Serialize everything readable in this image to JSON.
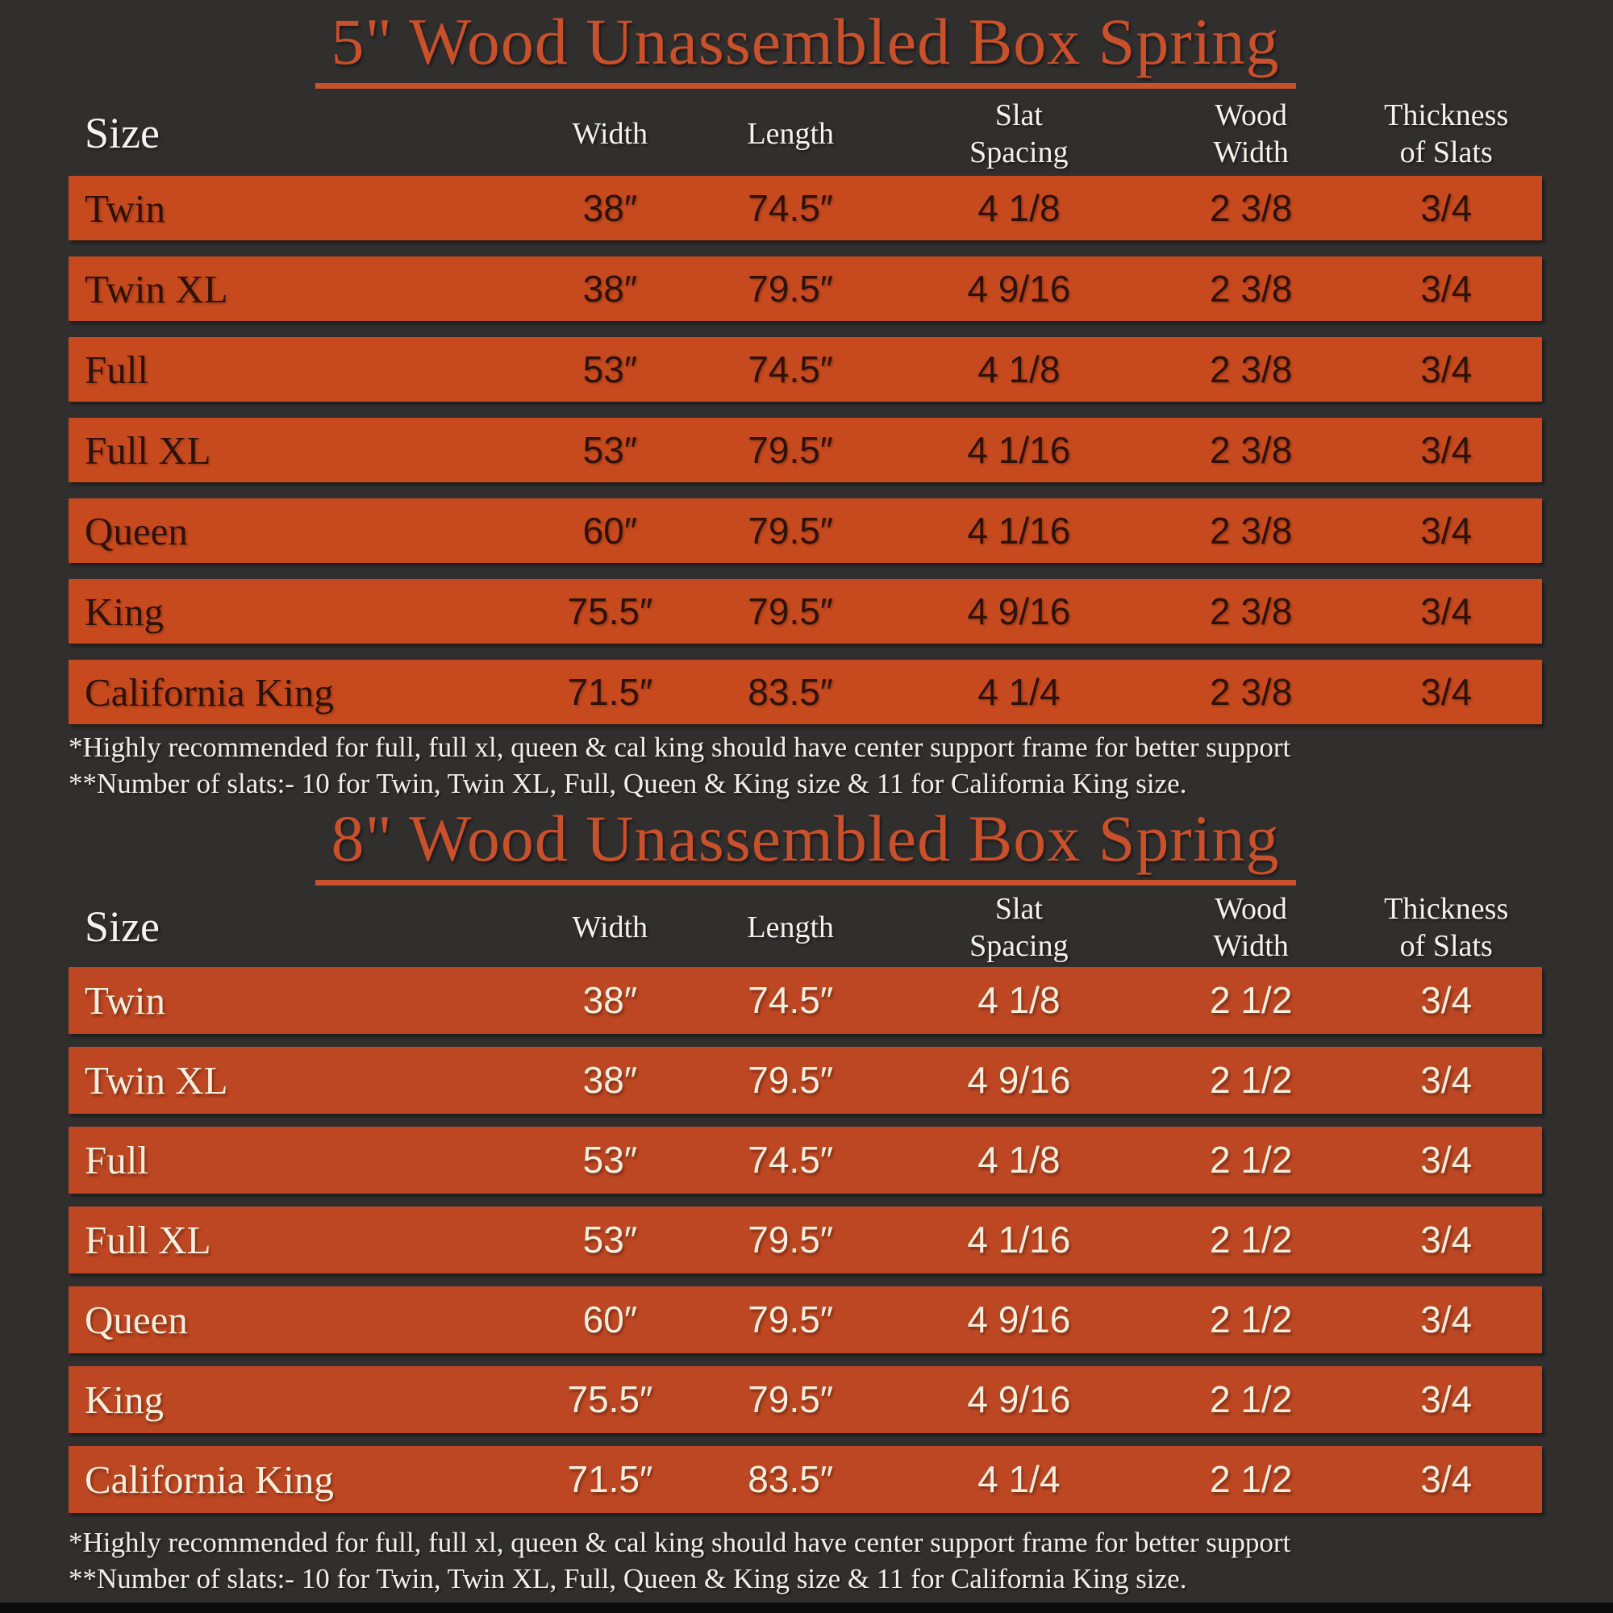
{
  "page": {
    "background_color": "#312e2e",
    "bottom_bar_color": "#0c0b0b"
  },
  "tables": [
    {
      "title": "5\" Wood Unassembled Box Spring",
      "accent_color": "#c8502b",
      "row_color": "#c74a1e",
      "row_text_color": "#2e1206",
      "columns": [
        "Size",
        "Width",
        "Length",
        "Slat\nSpacing",
        "Wood\nWidth",
        "Thickness\nof Slats"
      ],
      "rows": [
        [
          "Twin",
          "38″",
          "74.5″",
          "4 1/8",
          "2 3/8",
          "3/4"
        ],
        [
          "Twin XL",
          "38″",
          "79.5″",
          "4 9/16",
          "2 3/8",
          "3/4"
        ],
        [
          "Full",
          "53″",
          "74.5″",
          "4 1/8",
          "2 3/8",
          "3/4"
        ],
        [
          "Full XL",
          "53″",
          "79.5″",
          "4 1/16",
          "2 3/8",
          "3/4"
        ],
        [
          "Queen",
          "60″",
          "79.5″",
          "4 1/16",
          "2 3/8",
          "3/4"
        ],
        [
          "King",
          "75.5″",
          "79.5″",
          "4 9/16",
          "2 3/8",
          "3/4"
        ],
        [
          "California King",
          "71.5″",
          "83.5″",
          "4 1/4",
          "2 3/8",
          "3/4"
        ]
      ],
      "footnotes": [
        "*Highly recommended for full, full xl, queen & cal king should have center support frame  for better support",
        "**Number of slats:- 10 for Twin, Twin XL, Full, Queen & King size & 11 for California King size."
      ]
    },
    {
      "title": "8\" Wood Unassembled Box Spring",
      "accent_color": "#c8502b",
      "row_color": "#bc4722",
      "row_text_color": "#f7eedd",
      "columns": [
        "Size",
        "Width",
        "Length",
        "Slat\nSpacing",
        "Wood\nWidth",
        "Thickness\nof Slats"
      ],
      "rows": [
        [
          "Twin",
          "38″",
          "74.5″",
          "4 1/8",
          "2 1/2",
          "3/4"
        ],
        [
          "Twin XL",
          "38″",
          "79.5″",
          "4 9/16",
          "2 1/2",
          "3/4"
        ],
        [
          "Full",
          "53″",
          "74.5″",
          "4 1/8",
          "2 1/2",
          "3/4"
        ],
        [
          "Full XL",
          "53″",
          "79.5″",
          "4 1/16",
          "2 1/2",
          "3/4"
        ],
        [
          "Queen",
          "60″",
          "79.5″",
          "4 9/16",
          "2 1/2",
          "3/4"
        ],
        [
          "King",
          "75.5″",
          "79.5″",
          "4 9/16",
          "2 1/2",
          "3/4"
        ],
        [
          "California King",
          "71.5″",
          "83.5″",
          "4 1/4",
          "2 1/2",
          "3/4"
        ]
      ],
      "footnotes": [
        "*Highly recommended for full, full xl, queen & cal king should have center support frame  for better support",
        "**Number of slats:- 10 for Twin, Twin XL, Full, Queen & King size & 11 for California King size."
      ]
    }
  ]
}
